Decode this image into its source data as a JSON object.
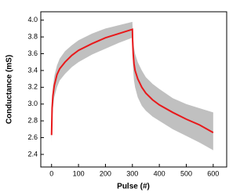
{
  "chart_data": {
    "type": "line",
    "xlabel": "Pulse (#)",
    "ylabel": "Conductance (mS)",
    "x": [
      0,
      2,
      5,
      10,
      20,
      30,
      50,
      75,
      100,
      150,
      200,
      250,
      300,
      301,
      303,
      306,
      310,
      320,
      335,
      350,
      375,
      400,
      450,
      500,
      550,
      600
    ],
    "series": [
      {
        "color": "#e8191b",
        "values": [
          2.63,
          2.95,
          3.1,
          3.22,
          3.35,
          3.42,
          3.5,
          3.58,
          3.64,
          3.72,
          3.79,
          3.84,
          3.89,
          3.75,
          3.6,
          3.48,
          3.4,
          3.3,
          3.2,
          3.13,
          3.05,
          2.99,
          2.9,
          2.82,
          2.75,
          2.66
        ]
      }
    ],
    "band": {
      "color": "#c0c0c0",
      "upper": [
        2.7,
        3.05,
        3.2,
        3.33,
        3.46,
        3.54,
        3.63,
        3.7,
        3.76,
        3.84,
        3.9,
        3.94,
        3.98,
        3.9,
        3.78,
        3.67,
        3.6,
        3.5,
        3.4,
        3.32,
        3.24,
        3.18,
        3.07,
        3.0,
        2.95,
        2.9
      ],
      "lower": [
        2.55,
        2.8,
        2.95,
        3.08,
        3.2,
        3.28,
        3.36,
        3.44,
        3.5,
        3.59,
        3.66,
        3.73,
        3.79,
        3.58,
        3.4,
        3.28,
        3.2,
        3.08,
        2.98,
        2.92,
        2.85,
        2.8,
        2.7,
        2.62,
        2.54,
        2.45
      ]
    },
    "xlim": [
      -40,
      650
    ],
    "xticks": [
      0,
      100,
      200,
      300,
      400,
      500,
      600
    ],
    "ylim": [
      2.25,
      4.1
    ],
    "yticks": [
      2.4,
      2.6,
      2.8,
      {
        "value": 3,
        "label": "3.0"
      },
      3.2,
      3.4,
      3.6,
      3.8,
      {
        "value": 4,
        "label": "4.0"
      }
    ],
    "grid": false
  }
}
